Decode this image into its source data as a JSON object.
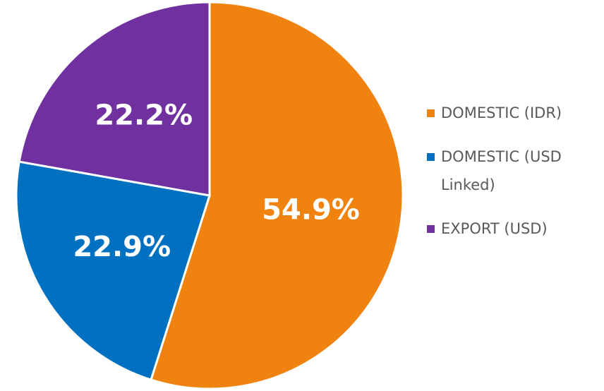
{
  "chart_data": {
    "type": "pie",
    "categories": [
      "DOMESTIC (IDR)",
      "DOMESTIC (USD Linked)",
      "EXPORT (USD)"
    ],
    "values": [
      54.9,
      22.9,
      22.2
    ],
    "value_labels": [
      "54.9%",
      "22.9%",
      "22.2%"
    ],
    "colors": [
      "#f0820f",
      "#0070c0",
      "#7030a0"
    ],
    "legend": "right"
  }
}
